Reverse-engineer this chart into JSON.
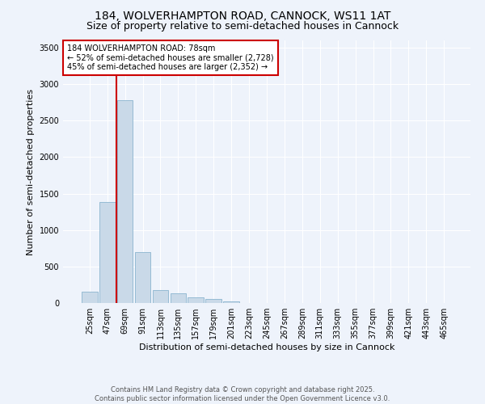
{
  "title_line1": "184, WOLVERHAMPTON ROAD, CANNOCK, WS11 1AT",
  "title_line2": "Size of property relative to semi-detached houses in Cannock",
  "xlabel": "Distribution of semi-detached houses by size in Cannock",
  "ylabel": "Number of semi-detached properties",
  "bins": [
    "25sqm",
    "47sqm",
    "69sqm",
    "91sqm",
    "113sqm",
    "135sqm",
    "157sqm",
    "179sqm",
    "201sqm",
    "223sqm",
    "245sqm",
    "267sqm",
    "289sqm",
    "311sqm",
    "333sqm",
    "355sqm",
    "377sqm",
    "399sqm",
    "421sqm",
    "443sqm",
    "465sqm"
  ],
  "values": [
    150,
    1380,
    2780,
    700,
    175,
    130,
    80,
    50,
    20,
    5,
    0,
    0,
    0,
    0,
    0,
    0,
    0,
    0,
    0,
    0,
    0
  ],
  "bar_color": "#c9d9e8",
  "bar_edge_color": "#8ab4cf",
  "vline_x": 1.5,
  "property_label": "184 WOLVERHAMPTON ROAD: 78sqm",
  "annotation_line1": "← 52% of semi-detached houses are smaller (2,728)",
  "annotation_line2": "45% of semi-detached houses are larger (2,352) →",
  "vline_color": "#cc0000",
  "annotation_box_edgecolor": "#cc0000",
  "ylim": [
    0,
    3600
  ],
  "yticks": [
    0,
    500,
    1000,
    1500,
    2000,
    2500,
    3000,
    3500
  ],
  "background_color": "#eef3fb",
  "plot_bg_color": "#eef3fb",
  "footer_line1": "Contains HM Land Registry data © Crown copyright and database right 2025.",
  "footer_line2": "Contains public sector information licensed under the Open Government Licence v3.0.",
  "title_fontsize": 10,
  "subtitle_fontsize": 9,
  "axis_label_fontsize": 8,
  "tick_fontsize": 7,
  "annotation_fontsize": 7,
  "footer_fontsize": 6
}
